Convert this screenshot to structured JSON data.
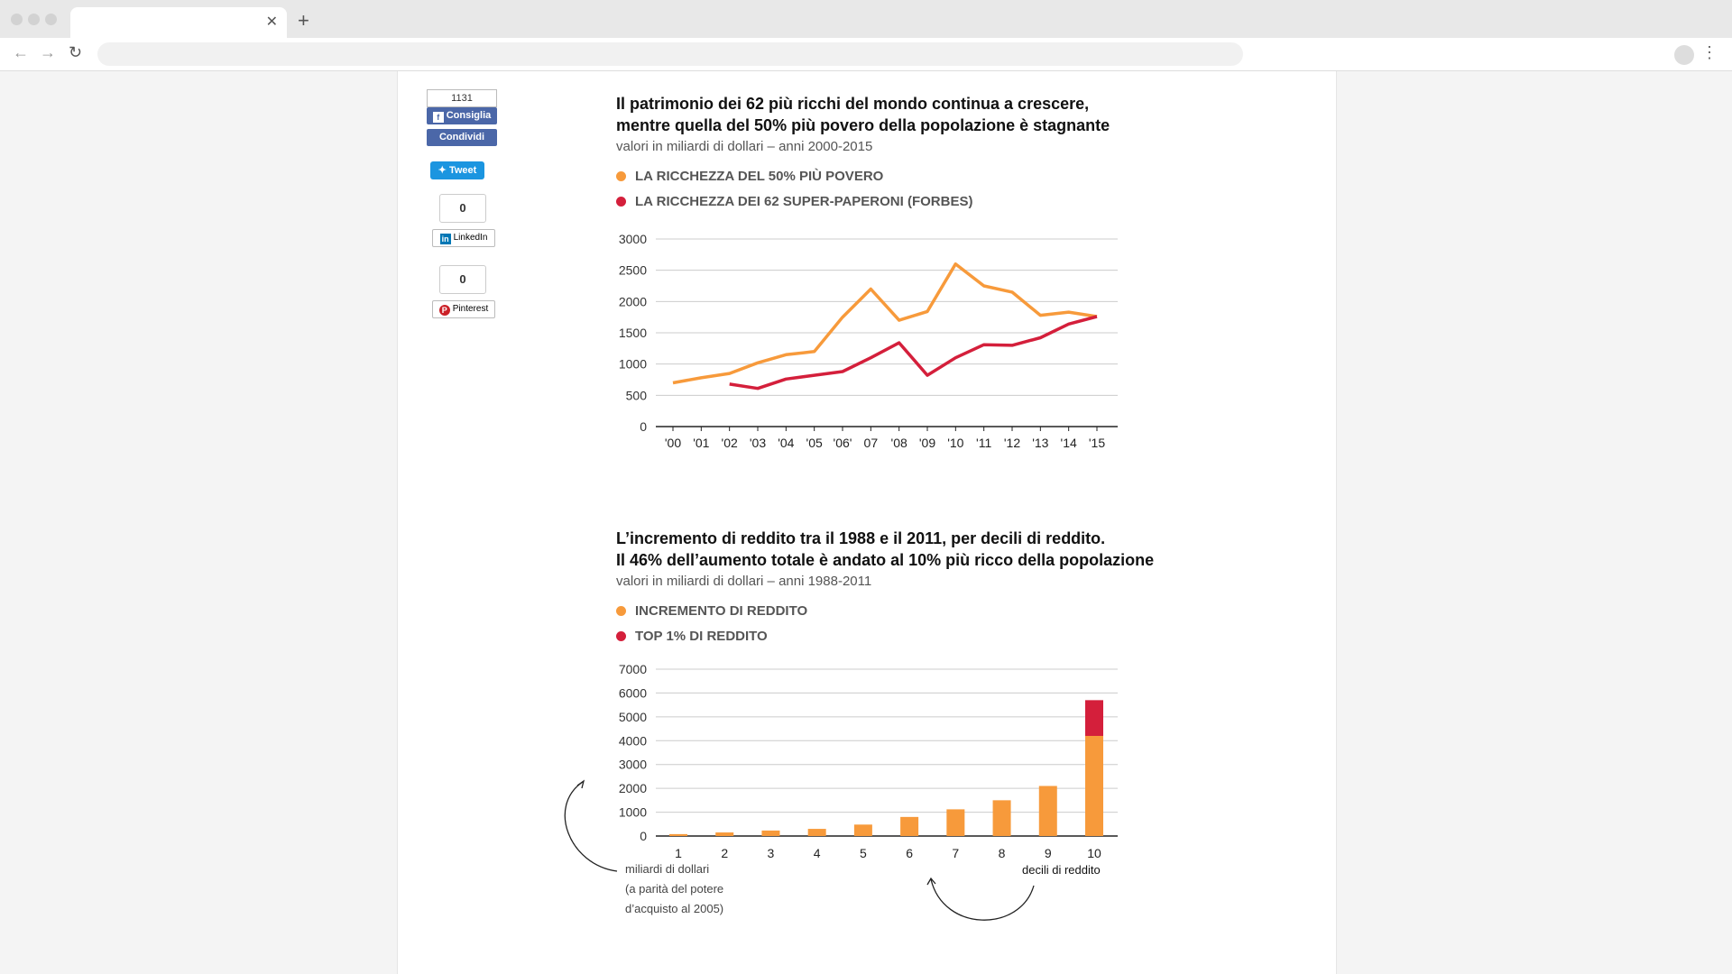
{
  "share": {
    "fb_count": "1131",
    "fb_like": "Consiglia",
    "fb_share": "Condividi",
    "tweet": "Tweet",
    "linkedin_count": "0",
    "linkedin": "LinkedIn",
    "pinterest_count": "0",
    "pinterest": "Pinterest"
  },
  "colors": {
    "orange": "#f79a3b",
    "red": "#d41f3b"
  },
  "chart1": {
    "title_line1": "Il patrimonio dei 62 più ricchi del mondo continua a crescere,",
    "title_line2": "mentre quella del 50% più povero della popolazione è stagnante",
    "subtitle": "valori in miliardi di dollari – anni 2000-2015",
    "legend": [
      "LA RICCHEZZA DEL 50% PIÙ POVERO",
      "LA RICCHEZZA DEI 62 SUPER-PAPERONI (FORBES)"
    ]
  },
  "chart2": {
    "title_line1": "L’incremento di reddito tra il 1988 e il 2011, per decili di reddito.",
    "title_line2": "Il 46% dell’aumento totale è andato al 10% più ricco della popolazione",
    "subtitle": "valori in miliardi di dollari – anni 1988-2011",
    "legend": [
      "INCREMENTO DI REDDITO",
      "TOP 1% DI REDDITO"
    ],
    "annot_y": [
      "miliardi di dollari",
      "(a parità del potere",
      "d’acquisto al 2005)"
    ],
    "annot_x": "decili di reddito"
  },
  "chart_data": [
    {
      "type": "line",
      "x": [
        "'00",
        "'01",
        "'02",
        "'03",
        "'04",
        "'05",
        "'06'",
        "07",
        "'08",
        "'09",
        "'10",
        "'11",
        "'12",
        "'13",
        "'14",
        "'15"
      ],
      "ylim": [
        0,
        3000
      ],
      "yticks": [
        0,
        500,
        1000,
        1500,
        2000,
        2500,
        3000
      ],
      "grid": true,
      "legend_position": "top-left",
      "series": [
        {
          "name": "LA RICCHEZZA DEL 50% PIÙ POVERO",
          "color": "#f79a3b",
          "values": [
            700,
            780,
            850,
            1020,
            1150,
            1200,
            1750,
            2200,
            1700,
            1840,
            2600,
            2250,
            2150,
            1780,
            1830,
            1760
          ]
        },
        {
          "name": "LA RICCHEZZA DEI 62 SUPER-PAPERONI (FORBES)",
          "color": "#d41f3b",
          "values": [
            null,
            null,
            680,
            610,
            760,
            820,
            880,
            1100,
            1340,
            820,
            1100,
            1310,
            1300,
            1420,
            1640,
            1760
          ]
        }
      ]
    },
    {
      "type": "bar",
      "stacked": true,
      "categories": [
        "1",
        "2",
        "3",
        "4",
        "5",
        "6",
        "7",
        "8",
        "9",
        "10"
      ],
      "ylim": [
        0,
        7000
      ],
      "yticks": [
        0,
        1000,
        2000,
        3000,
        4000,
        5000,
        6000,
        7000
      ],
      "grid": true,
      "legend_position": "top-left",
      "series": [
        {
          "name": "INCREMENTO DI REDDITO",
          "color": "#f79a3b",
          "values": [
            80,
            150,
            230,
            300,
            480,
            800,
            1120,
            1500,
            2100,
            4200
          ]
        },
        {
          "name": "TOP 1% DI REDDITO",
          "color": "#d41f3b",
          "values": [
            0,
            0,
            0,
            0,
            0,
            0,
            0,
            0,
            0,
            1500
          ]
        }
      ]
    }
  ]
}
